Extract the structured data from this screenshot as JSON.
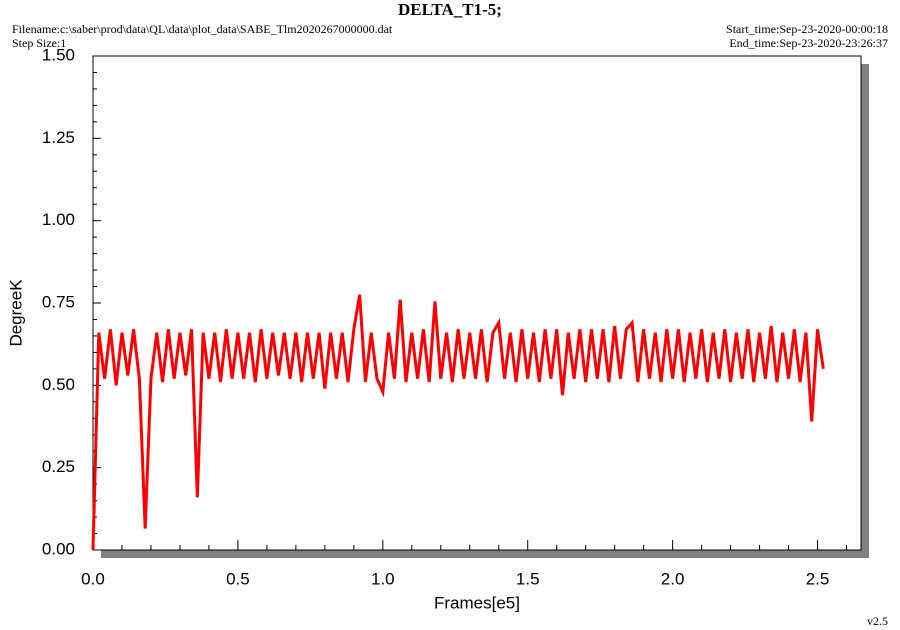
{
  "chart_data": {
    "type": "line",
    "title": "DELTA_T1-5;",
    "filename": "Filename:c:\\saber\\prod\\data\\QL\\data\\plot_data\\SABE_Tlm2020267000000.dat",
    "step_size": "Step Size:1",
    "start_time": "Start_time:Sep-23-2020-00:00:18",
    "end_time": "End_time:Sep-23-2020-23:26:37",
    "version": "v2.5",
    "xlabel": "Frames[e5]",
    "ylabel": "DegreeK",
    "color": "#ff0000",
    "xlim": [
      0,
      2.65
    ],
    "ylim": [
      0,
      1.5
    ],
    "xticks": [
      {
        "value": 0,
        "label": "0.0"
      },
      0.5,
      {
        "value": 1,
        "label": "1.0"
      },
      1.5,
      {
        "value": 2,
        "label": "2.0"
      },
      2.5
    ],
    "yticks": [
      {
        "value": 0,
        "label": "0.00"
      },
      {
        "value": 0.25,
        "label": "0.25"
      },
      {
        "value": 0.5,
        "label": "0.50"
      },
      {
        "value": 0.75,
        "label": "0.75"
      },
      {
        "value": 1,
        "label": "1.00"
      },
      {
        "value": 1.25,
        "label": "1.25"
      },
      {
        "value": 1.5,
        "label": "1.50"
      }
    ],
    "x": [
      0,
      0.02,
      0.04,
      0.06,
      0.08,
      0.1,
      0.12,
      0.14,
      0.16,
      0.18,
      0.2,
      0.22,
      0.24,
      0.26,
      0.28,
      0.3,
      0.32,
      0.34,
      0.36,
      0.38,
      0.4,
      0.42,
      0.44,
      0.46,
      0.48,
      0.5,
      0.52,
      0.54,
      0.56,
      0.58,
      0.6,
      0.62,
      0.64,
      0.66,
      0.68,
      0.7,
      0.72,
      0.74,
      0.76,
      0.78,
      0.8,
      0.82,
      0.84,
      0.86,
      0.88,
      0.9,
      0.92,
      0.94,
      0.96,
      0.98,
      1,
      1.02,
      1.04,
      1.06,
      1.08,
      1.1,
      1.12,
      1.14,
      1.16,
      1.18,
      1.2,
      1.22,
      1.24,
      1.26,
      1.28,
      1.3,
      1.32,
      1.34,
      1.36,
      1.38,
      1.4,
      1.42,
      1.44,
      1.46,
      1.48,
      1.5,
      1.52,
      1.54,
      1.56,
      1.58,
      1.6,
      1.62,
      1.64,
      1.66,
      1.68,
      1.7,
      1.72,
      1.74,
      1.76,
      1.78,
      1.8,
      1.82,
      1.84,
      1.86,
      1.88,
      1.9,
      1.92,
      1.94,
      1.96,
      1.98,
      2,
      2.02,
      2.04,
      2.06,
      2.08,
      2.1,
      2.12,
      2.14,
      2.16,
      2.18,
      2.2,
      2.22,
      2.24,
      2.26,
      2.28,
      2.3,
      2.32,
      2.34,
      2.36,
      2.38,
      2.4,
      2.42,
      2.44,
      2.46,
      2.48,
      2.5,
      2.52
    ],
    "values": [
      0.0,
      0.66,
      0.52,
      0.67,
      0.5,
      0.66,
      0.53,
      0.67,
      0.52,
      0.065,
      0.52,
      0.66,
      0.51,
      0.67,
      0.52,
      0.66,
      0.53,
      0.67,
      0.16,
      0.66,
      0.52,
      0.66,
      0.51,
      0.67,
      0.52,
      0.66,
      0.52,
      0.66,
      0.51,
      0.67,
      0.52,
      0.66,
      0.53,
      0.66,
      0.52,
      0.66,
      0.51,
      0.66,
      0.52,
      0.66,
      0.49,
      0.66,
      0.52,
      0.66,
      0.51,
      0.67,
      0.775,
      0.51,
      0.66,
      0.52,
      0.48,
      0.66,
      0.52,
      0.76,
      0.51,
      0.66,
      0.52,
      0.67,
      0.51,
      0.755,
      0.52,
      0.66,
      0.51,
      0.67,
      0.52,
      0.66,
      0.52,
      0.67,
      0.51,
      0.66,
      0.69,
      0.52,
      0.66,
      0.51,
      0.67,
      0.52,
      0.66,
      0.51,
      0.67,
      0.52,
      0.67,
      0.47,
      0.66,
      0.52,
      0.67,
      0.51,
      0.67,
      0.52,
      0.67,
      0.51,
      0.68,
      0.52,
      0.67,
      0.69,
      0.51,
      0.67,
      0.52,
      0.66,
      0.51,
      0.67,
      0.52,
      0.67,
      0.51,
      0.66,
      0.52,
      0.67,
      0.51,
      0.66,
      0.52,
      0.67,
      0.51,
      0.66,
      0.52,
      0.67,
      0.51,
      0.66,
      0.52,
      0.68,
      0.51,
      0.66,
      0.52,
      0.67,
      0.51,
      0.66,
      0.39,
      0.67,
      0.55
    ]
  }
}
